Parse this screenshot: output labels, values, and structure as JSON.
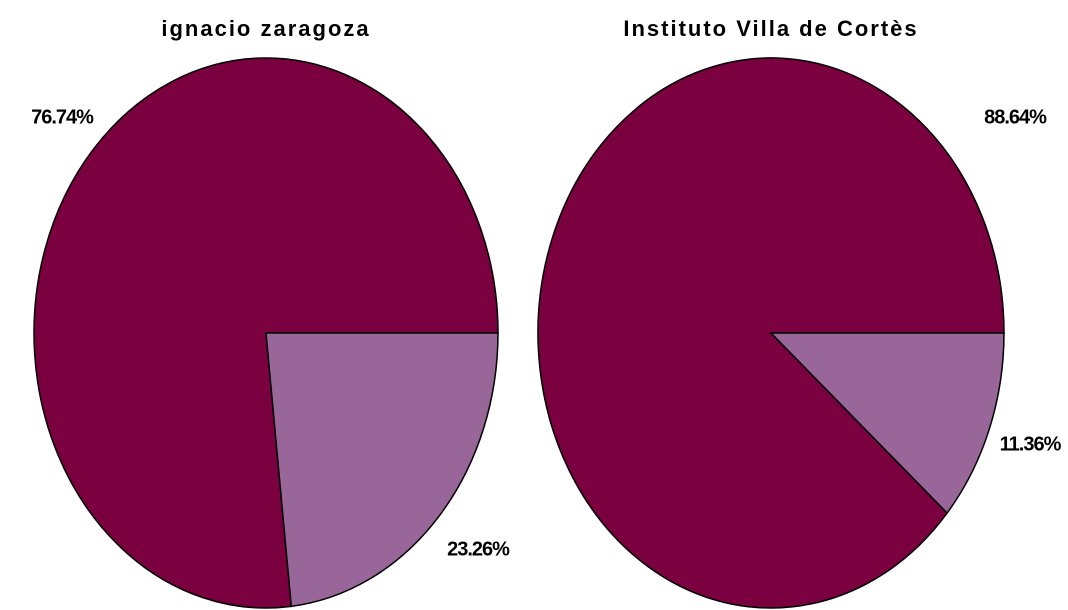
{
  "chart_data": [
    {
      "type": "pie",
      "title": "ignacio zaragoza",
      "values": [
        76.74,
        23.26
      ],
      "value_labels": [
        "76.74%",
        "23.26%"
      ],
      "colors": [
        "#7a0040",
        "#996699"
      ]
    },
    {
      "type": "pie",
      "title": "Instituto Villa de Cortès",
      "values": [
        88.64,
        11.36
      ],
      "value_labels": [
        "88.64%",
        "11.36%"
      ],
      "colors": [
        "#7a0040",
        "#996699"
      ]
    }
  ]
}
